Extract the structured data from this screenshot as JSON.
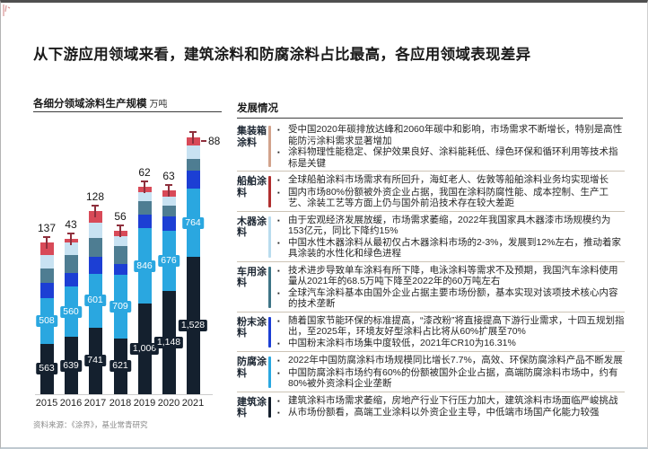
{
  "page": {
    "title": "从下游应用领域来看，建筑涂料和防腐涂料占比最高，各应用领域表现差异",
    "source_note": "资料来源：《涂界》，基业常青研究"
  },
  "chart": {
    "title": "各细分领域涂料生产规模",
    "unit_label": "万吨"
  },
  "chart_data": {
    "type": "bar",
    "stacked": true,
    "title": "各细分领域涂料生产规模（万吨）",
    "categories": [
      "2015",
      "2016",
      "2017",
      "2018",
      "2019",
      "2020",
      "2021"
    ],
    "series": [
      {
        "name": "dark-navy-bottom",
        "color": "#14202e",
        "values": [
          563,
          639,
          741,
          621,
          1006,
          1148,
          1528
        ],
        "labels": [
          "563",
          "639",
          "741",
          "621",
          "1,006",
          "1,148",
          "1,528"
        ]
      },
      {
        "name": "sky-blue",
        "color": "#2aa7e0",
        "values": [
          508,
          560,
          601,
          709,
          846,
          676,
          764
        ],
        "labels": [
          "508",
          "560",
          "601",
          "709",
          "846",
          "676",
          "764"
        ]
      },
      {
        "name": "royal-blue",
        "color": "#1c3fd4",
        "values": [
          170,
          150,
          190,
          120,
          150,
          160,
          200
        ]
      },
      {
        "name": "steel-blue",
        "color": "#4e7d92",
        "values": [
          160,
          200,
          210,
          200,
          150,
          120,
          130
        ]
      },
      {
        "name": "pale-blue",
        "color": "#c8e2f2",
        "values": [
          150,
          140,
          170,
          110,
          100,
          100,
          150
        ]
      },
      {
        "name": "red-top",
        "color": "#d84a58",
        "values": [
          137,
          43,
          128,
          56,
          62,
          63,
          88
        ]
      }
    ],
    "top_labels": [
      "137",
      "43",
      "128",
      "56",
      "62",
      "63",
      "88"
    ],
    "ylim": [
      0,
      3000
    ],
    "legend": "none",
    "grid": "off"
  },
  "development": {
    "header": "发展情况",
    "rows": [
      {
        "category": "集装箱涂料",
        "accent": "#d2a38c",
        "bullets": [
          "受中国2020年碳排放达峰和2060年碳中和影响，市场需求不断增长，特别是高性能防污涂料需求显著增加",
          "涂料物理性能稳定、保护效果良好、涂料能耗低、绿色环保和循环利用等技术指标是关键"
        ]
      },
      {
        "category": "船舶涂料",
        "accent": "#b02f2f",
        "bullets": [
          "全球船舶涂料市场需求有所回升，海虹老人、佐敦等船舶涂料业务均实现增长",
          "国内市场80%份额被外资企业占据，我国在涂料防腐性能、成本控制、生产工艺、涂装工艺等方面上仍与国外前沿技术存在较大差距"
        ]
      },
      {
        "category": "木器涂料",
        "accent": "#b9dcee",
        "bullets": [
          "由于宏观经济发展放缓，市场需求萎缩，2022年我国家具木器漆市场规模约为153亿元，同比下降约15%",
          "中国水性木器涂料从最初仅占木器涂料市场的2-3%，发展到12%左右，推动着家具涂装的水性化和绿色进程"
        ]
      },
      {
        "category": "车用涂料",
        "accent": "#3e7486",
        "bullets": [
          "技术进步导致单车涂料有所下降，电泳涂料等需求不及预期，我国汽车涂料使用量从2021年的68.5万吨下降至2022年的60万吨左右",
          "全球汽车涂料基本由国外企业占据主要市场份额，基本实现对该项技术核心内容的技术垄断"
        ]
      },
      {
        "category": "粉末涂料",
        "accent": "#1c3fd4",
        "bullets": [
          "随着国家节能环保的标准提高，“漆改粉”将直接提高下游行业需求，十四五规划指出，至2025年，环境友好型涂料占比将从60%扩展至70%",
          "中国粉末涂料市场集中度较低，2021年CR10为16.31%"
        ]
      },
      {
        "category": "防腐涂料",
        "accent": "#2aa7e0",
        "bullets": [
          "2022年中国防腐涂料市场规模同比增长7.7%，高效、环保防腐涂料产品不断发展",
          "中国防腐涂料市场约有60%的份额被国外企业占据，高端防腐涂料市场中，约有80%被外资涂料企业垄断"
        ]
      },
      {
        "category": "建筑涂料",
        "accent": "#141f2c",
        "bullets": [
          "建筑涂料市场需求萎缩，房地产行业下行压力加大，建筑涂料市场面临严峻挑战",
          "从市场份额看，高端工业涂料以外资企业主导，中低端市场国产化能力较强"
        ]
      }
    ]
  },
  "colors": {
    "marker": "#8e2f3c",
    "divider": "#cdc4b6",
    "header_rule": "#3f3f3f",
    "pill_navy": "#14202e",
    "pill_cyan": "#2aa7e0"
  }
}
